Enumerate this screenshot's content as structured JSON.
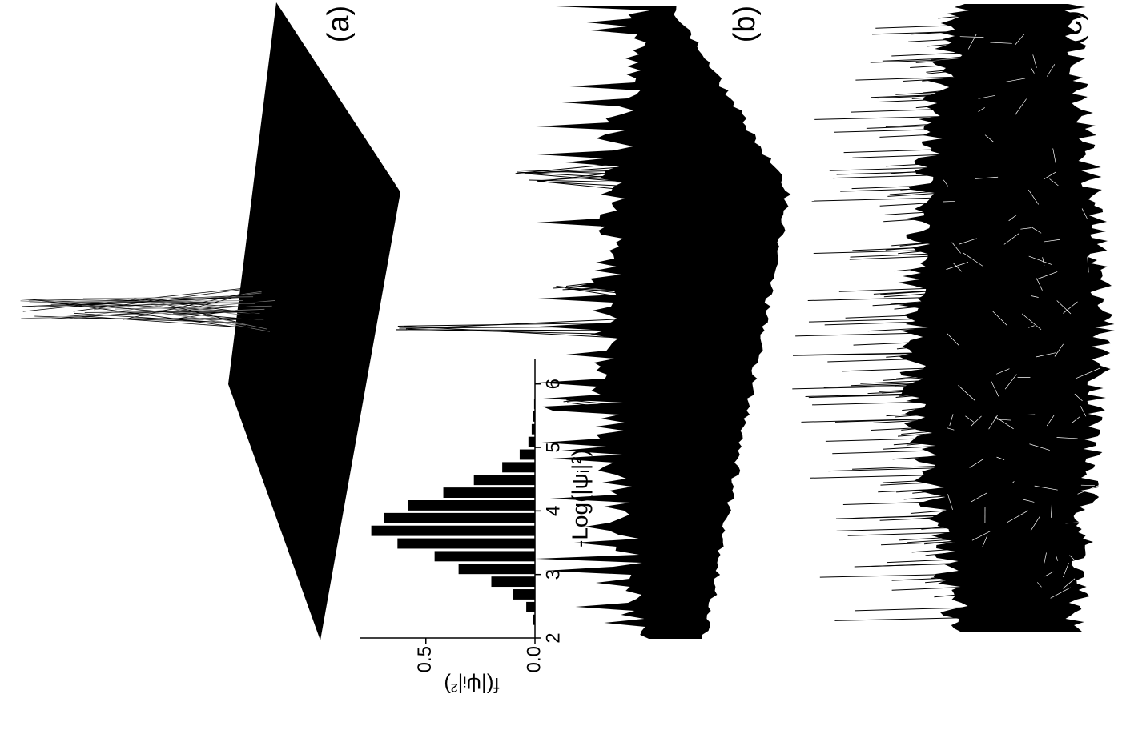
{
  "chart_data": {
    "type": "histogram",
    "annotations": [
      "(a)",
      "(b)",
      "(c)"
    ],
    "x_label": "-Log(|ψᵢ|²)",
    "y_label": "f(|ψᵢ|²)",
    "bins": [
      2.2,
      2.4,
      2.6,
      2.8,
      3.0,
      3.2,
      3.4,
      3.6,
      3.8,
      4.0,
      4.2,
      4.4,
      4.6,
      4.8,
      5.0,
      5.2,
      5.4,
      5.6,
      5.8
    ],
    "values": [
      0.01,
      0.04,
      0.1,
      0.2,
      0.35,
      0.46,
      0.63,
      0.75,
      0.69,
      0.58,
      0.42,
      0.28,
      0.15,
      0.07,
      0.03,
      0.015,
      0.008,
      0.004
    ],
    "color": "#000000",
    "xlim": [
      2,
      6.4
    ],
    "ylim": [
      0,
      0.8
    ],
    "xticks": [
      2,
      3,
      4,
      5,
      6
    ],
    "yticks": [
      {
        "value": 0,
        "label": "0.0"
      },
      {
        "value": 0.5,
        "label": "0.5"
      }
    ]
  }
}
